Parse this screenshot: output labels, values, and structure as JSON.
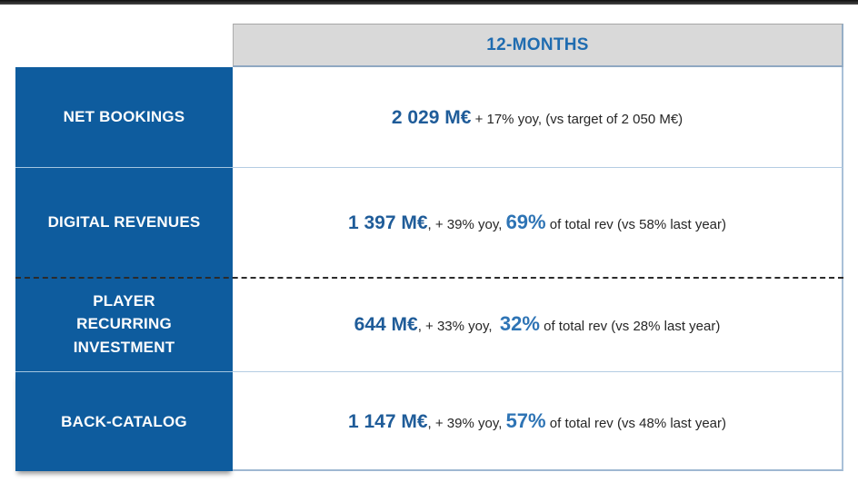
{
  "header": {
    "column_label": "12-MONTHS"
  },
  "rows": [
    {
      "label": "NET BOOKINGS",
      "value": "2 029 M€",
      "mid": " + 17% yoy, (vs target of 2 050 M€)",
      "pct": "",
      "tail": ""
    },
    {
      "label": "DIGITAL REVENUES",
      "value": "1 397 M€",
      "mid": ", + 39% yoy, ",
      "pct": "69%",
      "tail": " of total rev (vs 58% last year)"
    },
    {
      "label": "PLAYER\nRECURRING\nINVESTMENT",
      "value": "644 M€",
      "mid": ", + 33% yoy,  ",
      "pct": "32%",
      "tail": " of total rev (vs 28% last year)"
    },
    {
      "label": "BACK-CATALOG",
      "value": "1 147 M€",
      "mid": ", + 39% yoy, ",
      "pct": "57%",
      "tail": " of total rev (vs 48% last year)"
    }
  ],
  "colors": {
    "top_bar": "#1A1A1A",
    "sidebar_blue": "#0E5C9E",
    "header_bg": "#D9D9D9",
    "header_text_blue": "#1F6CB0",
    "value_blue": "#1F5C99",
    "percent_blue": "#2E74B5",
    "body_text": "#262626",
    "grid_line_blue": "#A9C0D8"
  }
}
